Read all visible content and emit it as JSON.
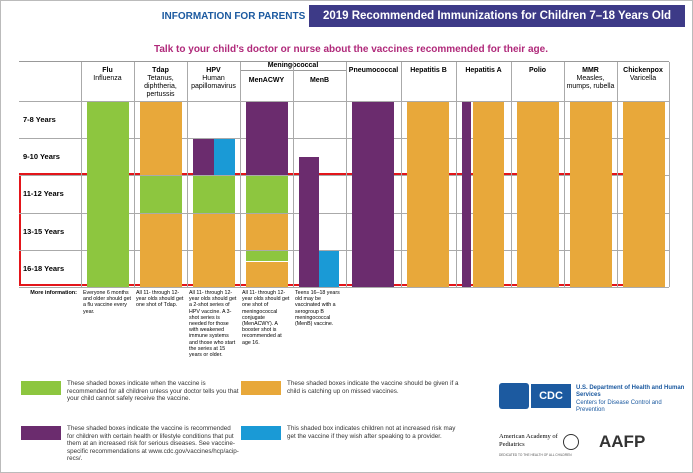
{
  "header": {
    "tag": "INFORMATION FOR PARENTS",
    "title": "2019 Recommended Immunizations for Children 7–18 Years Old",
    "subtitle": "Talk to your child’s doctor or nurse about the vaccines recommended for their age."
  },
  "table": {
    "group": "Meningococcal",
    "columns": [
      {
        "name": "Flu",
        "sub": "Influenza"
      },
      {
        "name": "Tdap",
        "sub": "Tetanus, diphtheria, pertussis"
      },
      {
        "name": "HPV",
        "sub": "Human papillomavirus"
      },
      {
        "name": "MenACWY",
        "sub": ""
      },
      {
        "name": "MenB",
        "sub": ""
      },
      {
        "name": "Pneumococcal",
        "sub": ""
      },
      {
        "name": "Hepatitis B",
        "sub": ""
      },
      {
        "name": "Hepatitis A",
        "sub": ""
      },
      {
        "name": "Polio",
        "sub": ""
      },
      {
        "name": "MMR",
        "sub": "Measles, mumps, rubella"
      },
      {
        "name": "Chickenpox",
        "sub": "Varicella"
      }
    ],
    "rows": [
      "7-8 Years",
      "9-10 Years",
      "11-12 Years",
      "13-15 Years",
      "16-18 Years"
    ],
    "more_label": "More information:",
    "notes": [
      "Everyone 6 months and older should get a flu vaccine every year.",
      "All 11- through 12-year olds should get one shot of Tdap.",
      "All 11- through 12-year olds should get a 2-shot series of HPV vaccine. A 3-shot series is needed for those with weakened immune systems and those who start the series at 15 years or older.",
      "All 11- through 12-year olds should get one shot of meningococcal conjugate (MenACWY). A booster shot is recommended at age 16.",
      "Teens 16–18 years old may be vaccinated with a serogroup B meningococcal (MenB) vaccine."
    ]
  },
  "legend": [
    "These shaded boxes indicate when the vaccine is recommended for all children unless your doctor tells you that your child cannot safely receive the vaccine.",
    "These shaded boxes indicate the vaccine should be given if a child is catching up on missed vaccines.",
    "These shaded boxes indicate the vaccine is recommended for children with certain health or lifestyle conditions that put them at an increased risk for serious diseases. See vaccine-specific recommendations at www.cdc.gov/vaccines/hcp/acip-recs/.",
    "This shaded box indicates children not at increased risk may get the vaccine if they wish after speaking to a provider."
  ],
  "logos": {
    "cdc": "CDC",
    "hhs": "U.S. Department of Health and Human Services",
    "cdc_full": "Centers for Disease Control and Prevention",
    "aap": "American Academy of Pediatrics",
    "aap_motto": "DEDICATED TO THE HEALTH OF ALL CHILDREN",
    "aafp": "AAFP"
  }
}
